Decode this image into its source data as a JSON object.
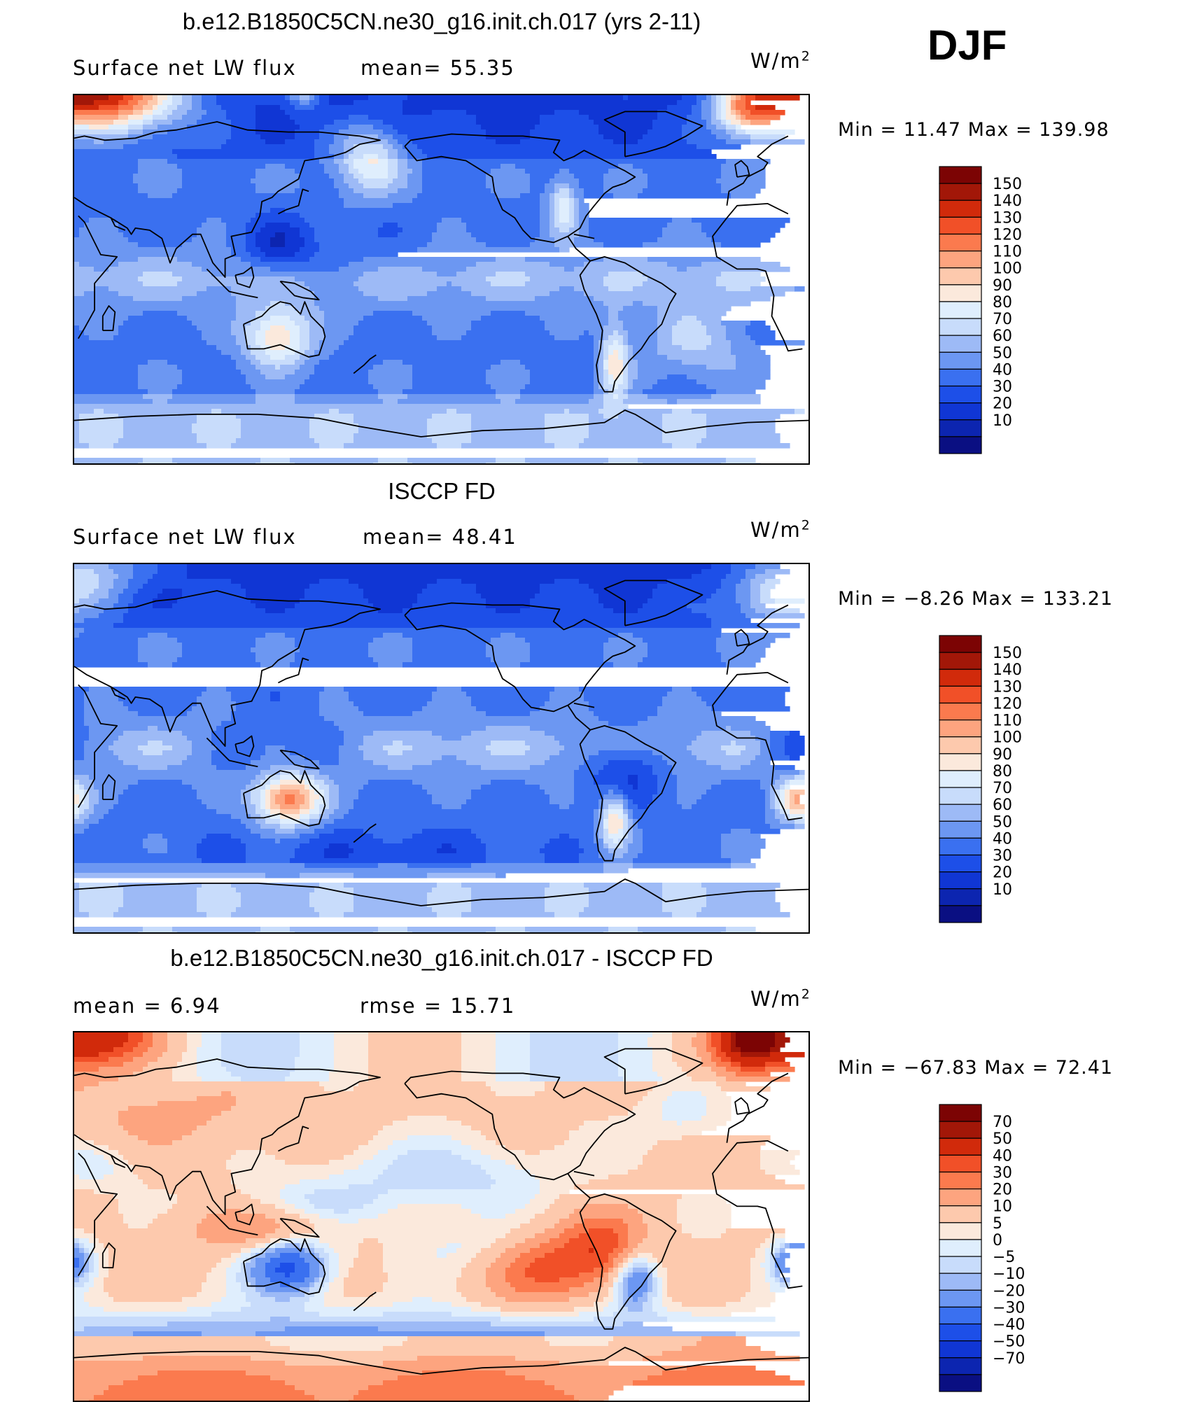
{
  "season": "DJF",
  "colors": {
    "abs": [
      "#0a0f82",
      "#0c25b0",
      "#1036d4",
      "#1d4fe8",
      "#3a70f0",
      "#6c97f2",
      "#9dbaf6",
      "#c8dcfb",
      "#dfeefd",
      "#fbe9dc",
      "#fdc9ad",
      "#fda47f",
      "#fb7a4e",
      "#f15028",
      "#d12a0b",
      "#a21708",
      "#7c0404"
    ],
    "diff": [
      "#0a0f82",
      "#0c25b0",
      "#1036d4",
      "#1d4fe8",
      "#3a70f0",
      "#6c97f2",
      "#9dbaf6",
      "#c8dcfb",
      "#dfeefd",
      "#fbe9dc",
      "#fdc9ad",
      "#fda47f",
      "#fb7a4e",
      "#f15028",
      "#d12a0b",
      "#a21708",
      "#7c0404"
    ],
    "coast": "#000000"
  },
  "panels": [
    {
      "title": "b.e12.B1850C5CN.ne30_g16.init.ch.017 (yrs 2-11)",
      "left": "Surface  net  LW  flux",
      "middle": "mean=   55.35",
      "units": "W/m",
      "minmax": "Min  =     11.47  Max  =  139.98",
      "levels": [
        "150",
        "140",
        "130",
        "120",
        "110",
        "100",
        "90",
        "80",
        "70",
        "60",
        "50",
        "40",
        "30",
        "20",
        "10"
      ]
    },
    {
      "title": "ISCCP FD",
      "left": "Surface  net  LW  flux",
      "middle": "mean=   48.41",
      "units": "W/m",
      "minmax": "Min  =    −8.26  Max  =  133.21",
      "levels": [
        "150",
        "140",
        "130",
        "120",
        "110",
        "100",
        "90",
        "80",
        "70",
        "60",
        "50",
        "40",
        "30",
        "20",
        "10"
      ]
    },
    {
      "title": "b.e12.B1850C5CN.ne30_g16.init.ch.017 - ISCCP FD",
      "left": "mean  =      6.94",
      "middle": "rmse  =    15.71",
      "units": "W/m",
      "minmax": "Min  = −67.83  Max  =     72.41",
      "levels": [
        "70",
        "50",
        "40",
        "30",
        "20",
        "10",
        "5",
        "0",
        "−5",
        "−10",
        "−20",
        "−30",
        "−40",
        "−50",
        "−70"
      ]
    }
  ],
  "chart_data": [
    {
      "type": "heatmap",
      "title": "b.e12.B1850C5CN.ne30_g16.init.ch.017 (yrs 2-11)",
      "variable": "Surface net LW flux",
      "units": "W/m^2",
      "mean": 55.35,
      "min": 11.47,
      "max": 139.98,
      "contour_levels": [
        10,
        20,
        30,
        40,
        50,
        60,
        70,
        80,
        90,
        100,
        110,
        120,
        130,
        140,
        150
      ]
    },
    {
      "type": "heatmap",
      "title": "ISCCP FD",
      "variable": "Surface net LW flux",
      "units": "W/m^2",
      "mean": 48.41,
      "min": -8.26,
      "max": 133.21,
      "contour_levels": [
        10,
        20,
        30,
        40,
        50,
        60,
        70,
        80,
        90,
        100,
        110,
        120,
        130,
        140,
        150
      ]
    },
    {
      "type": "heatmap",
      "title": "b.e12.B1850C5CN.ne30_g16.init.ch.017 - ISCCP FD",
      "units": "W/m^2",
      "mean": 6.94,
      "rmse": 15.71,
      "min": -67.83,
      "max": 72.41,
      "contour_levels": [
        -70,
        -50,
        -40,
        -30,
        -20,
        -10,
        -5,
        0,
        5,
        10,
        20,
        30,
        40,
        50,
        70
      ]
    }
  ]
}
